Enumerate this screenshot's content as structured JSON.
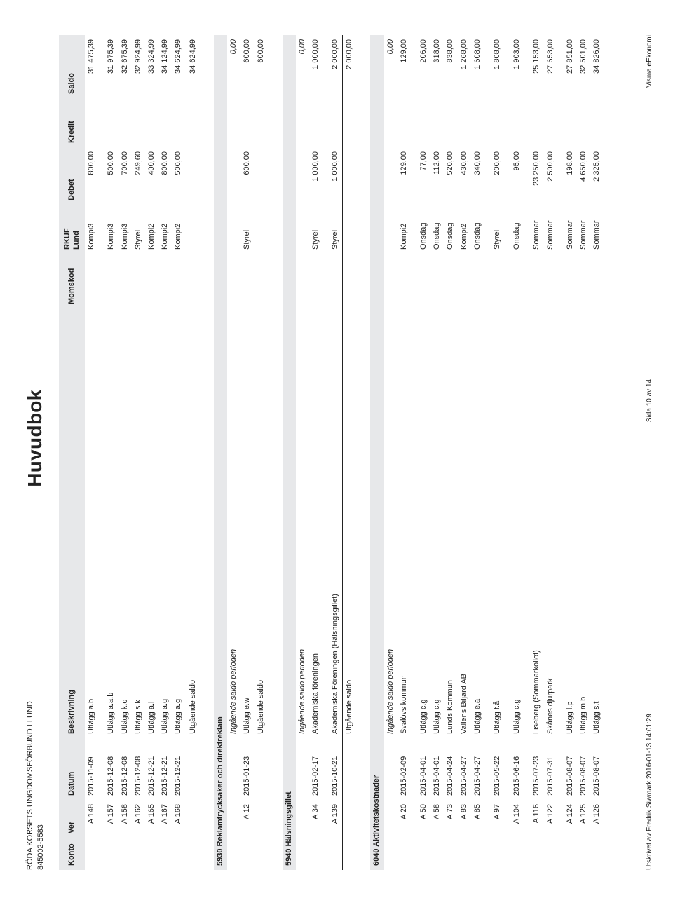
{
  "org": {
    "name": "RÖDA KORSETS UNGDOMSFÖRBUND I LUND",
    "orgnr": "845002-5583"
  },
  "title": "Huvudbok",
  "columns": {
    "konto": "Konto",
    "ver": "Ver",
    "datum": "Datum",
    "beskrivning": "Beskrivning",
    "momskod": "Momskod",
    "lund_line1": "RKUF",
    "lund_line2": "Lund",
    "debet": "Debet",
    "kredit": "Kredit",
    "saldo": "Saldo"
  },
  "labels": {
    "ingaende": "Ingående saldo perioden",
    "utgaaende": "Utgående saldo"
  },
  "preRows": [
    {
      "ver": "A 148",
      "datum": "2015-11-09",
      "besk": "Utlägg a.b",
      "lund": "Kompi3",
      "debet": "800,00",
      "kredit": "",
      "saldo": "31 475,39",
      "grpStart": true
    },
    {
      "ver": "A 157",
      "datum": "2015-12-08",
      "besk": "Utlägg a.a.b",
      "lund": "Kompi3",
      "debet": "500,00",
      "kredit": "",
      "saldo": "31 975,39",
      "grpStart": true
    },
    {
      "ver": "A 158",
      "datum": "2015-12-08",
      "besk": "Utlägg k.o",
      "lund": "Kompi3",
      "debet": "700,00",
      "kredit": "",
      "saldo": "32 675,39"
    },
    {
      "ver": "A 162",
      "datum": "2015-12-08",
      "besk": "Utlägg s.k",
      "lund": "Styrel",
      "debet": "249,60",
      "kredit": "",
      "saldo": "32 924,99"
    },
    {
      "ver": "A 165",
      "datum": "2015-12-21",
      "besk": "Utlägg a.i",
      "lund": "Kompi2",
      "debet": "400,00",
      "kredit": "",
      "saldo": "33 324,99"
    },
    {
      "ver": "A 167",
      "datum": "2015-12-21",
      "besk": "Utlägg a.g",
      "lund": "Kompi2",
      "debet": "800,00",
      "kredit": "",
      "saldo": "34 124,99"
    },
    {
      "ver": "A 168",
      "datum": "2015-12-21",
      "besk": "Utlägg a.g",
      "lund": "Kompi2",
      "debet": "500,00",
      "kredit": "",
      "saldo": "34 624,99"
    }
  ],
  "preOutgoing": "34 624,99",
  "accounts": [
    {
      "header": "5930 Reklamtrycksaker och direktreklam",
      "ingaende": "0,00",
      "rows": [
        {
          "ver": "A 12",
          "datum": "2015-01-23",
          "besk": "Utlägg e.w",
          "lund": "Styrel",
          "debet": "600,00",
          "kredit": "",
          "saldo": "600,00"
        }
      ],
      "outgoing": "600,00"
    },
    {
      "header": "5940 Hälsningsgillet",
      "ingaende": "0,00",
      "rows": [
        {
          "ver": "A 34",
          "datum": "2015-02-17",
          "besk": "Akademiska föreningen",
          "lund": "Styrel",
          "debet": "1 000,00",
          "kredit": "",
          "saldo": "1 000,00"
        },
        {
          "ver": "A 139",
          "datum": "2015-10-21",
          "besk": "Akademiska Föreningen (Hälsningsgillet)",
          "lund": "Styrel",
          "debet": "1 000,00",
          "kredit": "",
          "saldo": "2 000,00",
          "grpStart": true
        }
      ],
      "outgoing": "2 000,00"
    },
    {
      "header": "6040 Aktivitetskostnader",
      "ingaende": "0,00",
      "rows": [
        {
          "ver": "A 20",
          "datum": "2015-02-09",
          "besk": "Svalövs kommun",
          "lund": "Kompi2",
          "debet": "129,00",
          "kredit": "",
          "saldo": "129,00"
        },
        {
          "ver": "A 50",
          "datum": "2015-04-01",
          "besk": "Utlägg c.g",
          "lund": "Onsdag",
          "debet": "77,00",
          "kredit": "",
          "saldo": "206,00",
          "grpStart": true
        },
        {
          "ver": "A 58",
          "datum": "2015-04-01",
          "besk": "Utlägg c.g",
          "lund": "Onsdag",
          "debet": "112,00",
          "kredit": "",
          "saldo": "318,00"
        },
        {
          "ver": "A 73",
          "datum": "2015-04-24",
          "besk": "Lunds Kommun",
          "lund": "Onsdag",
          "debet": "520,00",
          "kredit": "",
          "saldo": "838,00"
        },
        {
          "ver": "A 83",
          "datum": "2015-04-27",
          "besk": "Vallens Biljard AB",
          "lund": "Kompi2",
          "debet": "430,00",
          "kredit": "",
          "saldo": "1 268,00"
        },
        {
          "ver": "A 85",
          "datum": "2015-04-27",
          "besk": "Utlägg e.a",
          "lund": "Onsdag",
          "debet": "340,00",
          "kredit": "",
          "saldo": "1 608,00"
        },
        {
          "ver": "A 97",
          "datum": "2015-05-22",
          "besk": "Utlägg f.å",
          "lund": "Styrel",
          "debet": "200,00",
          "kredit": "",
          "saldo": "1 808,00",
          "grpStart": true
        },
        {
          "ver": "A 104",
          "datum": "2015-06-16",
          "besk": "Utlägg c.g",
          "lund": "Onsdag",
          "debet": "95,00",
          "kredit": "",
          "saldo": "1 903,00",
          "grpStart": true
        },
        {
          "ver": "A 116",
          "datum": "2015-07-23",
          "besk": "Liseberg (Sommarkollot)",
          "lund": "Sommar",
          "debet": "23 250,00",
          "kredit": "",
          "saldo": "25 153,00",
          "grpStart": true
        },
        {
          "ver": "A 122",
          "datum": "2015-07-31",
          "besk": "Skånes djurpark",
          "lund": "Sommar",
          "debet": "2 500,00",
          "kredit": "",
          "saldo": "27 653,00"
        },
        {
          "ver": "A 124",
          "datum": "2015-08-07",
          "besk": "Utlägg l.p",
          "lund": "Sommar",
          "debet": "198,00",
          "kredit": "",
          "saldo": "27 851,00",
          "grpStart": true
        },
        {
          "ver": "A 125",
          "datum": "2015-08-07",
          "besk": "Utlägg m.b",
          "lund": "Sommar",
          "debet": "4 650,00",
          "kredit": "",
          "saldo": "32 501,00"
        },
        {
          "ver": "A 126",
          "datum": "2015-08-07",
          "besk": "Utlägg s.t",
          "lund": "Sommar",
          "debet": "2 325,00",
          "kredit": "",
          "saldo": "34 826,00"
        }
      ],
      "outgoing": null
    }
  ],
  "footer": {
    "left": "Utskrivet av Fredrik Siwmark 2016-01-13 14:01:29",
    "center": "Sida 10 av 14",
    "right": "Visma eEkonomi"
  }
}
